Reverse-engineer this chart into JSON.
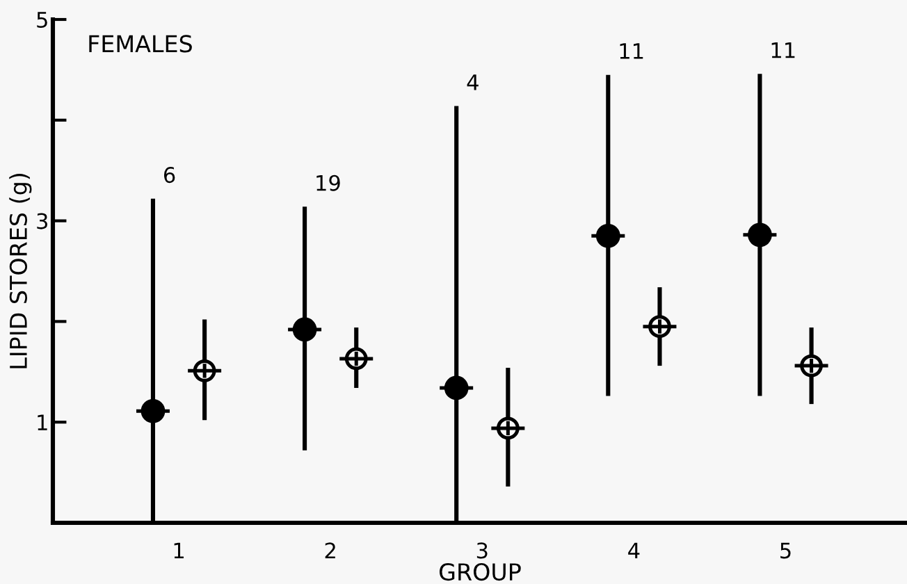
{
  "chart_data": {
    "type": "scatter",
    "title": "FEMALES",
    "xlabel": "GROUP",
    "ylabel": "LIPID STORES (g)",
    "categories": [
      "1",
      "2",
      "3",
      "4",
      "5"
    ],
    "series": [
      {
        "color": "#000000",
        "marker": "circle",
        "values": [
          1.11,
          1.92,
          1.34,
          2.85,
          2.86
        ],
        "errors": [
          [
            0,
            3.22
          ],
          [
            0.72,
            3.14
          ],
          [
            0,
            4.14
          ],
          [
            1.26,
            4.45
          ],
          [
            1.26,
            4.46
          ]
        ]
      },
      {
        "color": "#000000",
        "marker": "circle",
        "values": [
          1.51,
          1.63,
          0.94,
          1.95,
          1.56
        ],
        "errors": [
          [
            1.02,
            2.02
          ],
          [
            1.34,
            1.94
          ],
          [
            0.36,
            1.54
          ],
          [
            1.56,
            2.34
          ],
          [
            1.18,
            1.94
          ]
        ]
      }
    ],
    "annotations": [
      "6",
      "19",
      "4",
      "11",
      "11"
    ],
    "ylim": [
      0,
      5
    ],
    "yticks": [
      1,
      {
        "value": 2,
        "label": null
      },
      3,
      {
        "value": 4,
        "label": null
      },
      5
    ],
    "grid": false,
    "legend": false
  }
}
